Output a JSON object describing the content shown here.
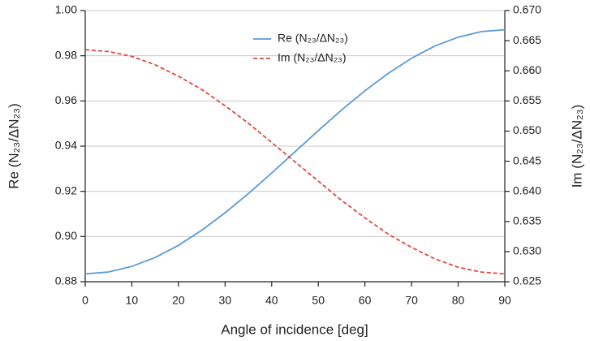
{
  "chart_data": {
    "type": "line",
    "x_label": "Angle of incidence [deg]",
    "y_label": "Re (N₂₃/ΔN₂₃)",
    "y2_label": "Im (N₂₃/ΔN₂₃)",
    "x": [
      0,
      5,
      10,
      15,
      20,
      25,
      30,
      35,
      40,
      45,
      50,
      55,
      60,
      65,
      70,
      75,
      80,
      85,
      90
    ],
    "series": [
      {
        "name": "Re (N₂₃/ΔN₂₃)",
        "color": "#5b9bd5",
        "line_style": "solid",
        "values": [
          0.8835,
          0.8843,
          0.8868,
          0.8907,
          0.8961,
          0.9028,
          0.9105,
          0.919,
          0.9281,
          0.9375,
          0.9469,
          0.956,
          0.9645,
          0.9722,
          0.9789,
          0.9843,
          0.9882,
          0.9907,
          0.9915
        ]
      },
      {
        "name": "Im (N₂₃/ΔN₂₃)",
        "color": "#e0483e",
        "line_style": "dashed",
        "axis": "y2",
        "values": [
          0.6635,
          0.6632,
          0.6624,
          0.661,
          0.6591,
          0.6569,
          0.6542,
          0.6513,
          0.6481,
          0.6449,
          0.6417,
          0.6385,
          0.6356,
          0.6329,
          0.6307,
          0.6288,
          0.6274,
          0.6266,
          0.6263
        ]
      }
    ],
    "xlim": [
      0,
      90
    ],
    "xticks": [
      0,
      10,
      20,
      30,
      40,
      50,
      60,
      70,
      80,
      90
    ],
    "ylim": [
      0.88,
      1.0
    ],
    "yticks": [
      0.88,
      {
        "value": 0.9,
        "label": "0.90"
      },
      0.92,
      0.94,
      0.96,
      0.98,
      {
        "value": 1.0,
        "label": "1.00"
      }
    ],
    "y2lim": [
      0.625,
      0.67
    ],
    "y2ticks": [
      0.625,
      {
        "value": 0.63,
        "label": "0.630"
      },
      0.635,
      {
        "value": 0.64,
        "label": "0.640"
      },
      0.645,
      {
        "value": 0.65,
        "label": "0.650"
      },
      0.655,
      {
        "value": 0.66,
        "label": "0.660"
      },
      0.665,
      {
        "value": 0.67,
        "label": "0.670"
      }
    ],
    "grid": true,
    "legend": "top"
  }
}
